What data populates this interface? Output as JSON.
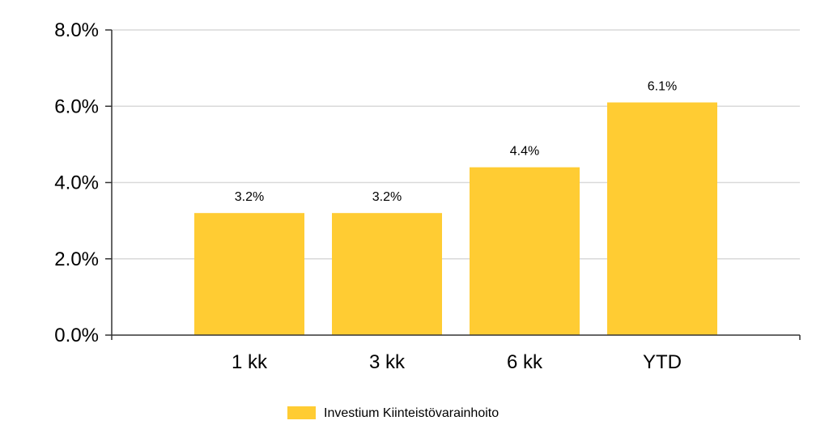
{
  "chart_data": {
    "type": "bar",
    "categories": [
      "1 kk",
      "3 kk",
      "6 kk",
      "YTD"
    ],
    "series": [
      {
        "name": "Investium Kiinteistövarainhoito",
        "values": [
          3.2,
          3.2,
          4.4,
          6.1
        ],
        "data_labels": [
          "3.2%",
          "3.2%",
          "4.4%",
          "6.1%"
        ],
        "color": "#FFCC33"
      }
    ],
    "ylim": [
      0,
      8
    ],
    "yticks": [
      0,
      2,
      4,
      6,
      8
    ],
    "ytick_labels": [
      "0.0%",
      "2.0%",
      "4.0%",
      "6.0%",
      "8.0%"
    ],
    "grid": true,
    "legend_position": "bottom-center",
    "colors": {
      "grid": "#d9d9d9",
      "axis": "#333333"
    }
  }
}
